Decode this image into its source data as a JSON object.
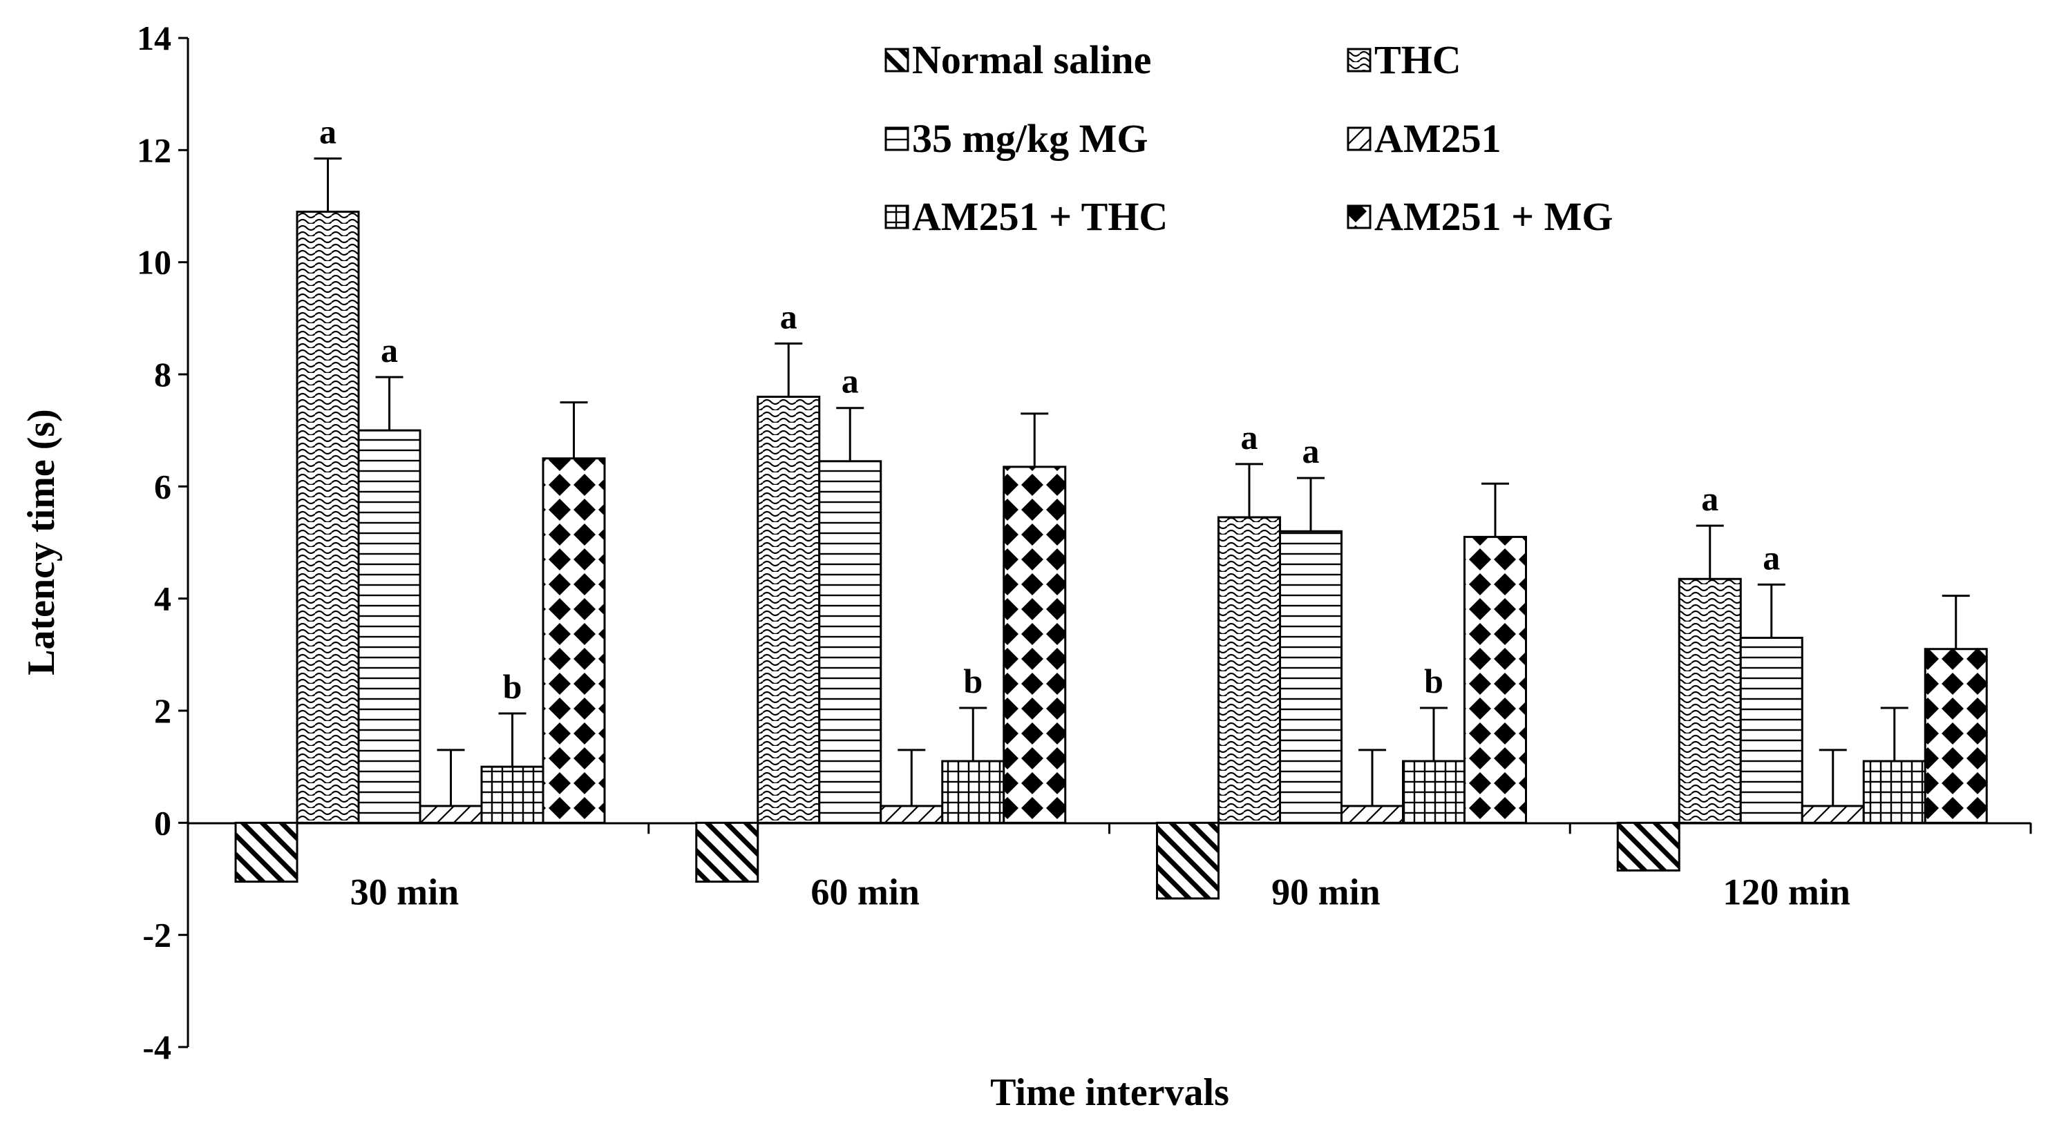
{
  "chart_data": {
    "type": "bar",
    "title": "",
    "xlabel": "Time intervals",
    "ylabel": "Latency time (s)",
    "ylim": [
      -4,
      14
    ],
    "yticks": [
      -4,
      -2,
      0,
      2,
      4,
      6,
      8,
      10,
      12,
      14
    ],
    "ytick_labels": [
      "-4",
      "-2",
      "0",
      "2",
      "4",
      "6",
      "8",
      "10",
      "12",
      "14"
    ],
    "grid": false,
    "legend_position": "top-right",
    "categories": [
      "30 min",
      "60 min",
      "90 min",
      "120 min"
    ],
    "series": [
      {
        "name": "Normal saline",
        "pattern": "diag-down",
        "values": [
          -1.05,
          -1.05,
          -1.35,
          -0.85
        ],
        "errors": [
          0,
          0,
          0,
          0
        ],
        "labels": [
          "",
          "",
          "",
          ""
        ]
      },
      {
        "name": "THC",
        "pattern": "wave",
        "values": [
          10.9,
          7.6,
          5.45,
          4.35
        ],
        "errors": [
          0.95,
          0.95,
          0.95,
          0.95
        ],
        "labels": [
          "a",
          "a",
          "a",
          "a"
        ]
      },
      {
        "name": "35 mg/kg MG",
        "pattern": "horizontal",
        "values": [
          7.0,
          6.45,
          5.2,
          3.3
        ],
        "errors": [
          0.95,
          0.95,
          0.95,
          0.95
        ],
        "labels": [
          "a",
          "a",
          "a",
          "a"
        ]
      },
      {
        "name": "AM251",
        "pattern": "diag-light",
        "values": [
          0.3,
          0.3,
          0.3,
          0.3
        ],
        "errors": [
          1.0,
          1.0,
          1.0,
          1.0
        ],
        "labels": [
          "",
          "",
          "",
          ""
        ]
      },
      {
        "name": "AM251 + THC",
        "pattern": "grid",
        "values": [
          1.0,
          1.1,
          1.1,
          1.1
        ],
        "errors": [
          0.95,
          0.95,
          0.95,
          0.95
        ],
        "labels": [
          "b",
          "b",
          "b",
          ""
        ]
      },
      {
        "name": "AM251 + MG",
        "pattern": "diamond",
        "values": [
          6.5,
          6.35,
          5.1,
          3.1
        ],
        "errors": [
          1.0,
          0.95,
          0.95,
          0.95
        ],
        "labels": [
          "",
          "",
          "",
          ""
        ]
      }
    ]
  }
}
